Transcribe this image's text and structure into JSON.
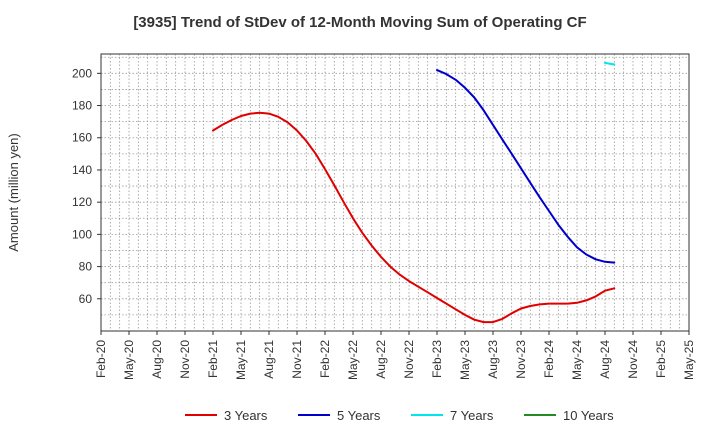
{
  "chart_data": {
    "type": "line",
    "title": "[3935]  Trend of StDev of 12-Month Moving Sum of Operating CF",
    "xlabel": "",
    "ylabel": "Amount (million yen)",
    "ylim": [
      40,
      212
    ],
    "yticks": [
      60,
      80,
      100,
      120,
      140,
      160,
      180,
      200
    ],
    "x_tick_labels": [
      "Feb-20",
      "May-20",
      "Aug-20",
      "Nov-20",
      "Feb-21",
      "May-21",
      "Aug-21",
      "Nov-21",
      "Feb-22",
      "May-22",
      "Aug-22",
      "Nov-22",
      "Feb-23",
      "May-23",
      "Aug-23",
      "Nov-23",
      "Feb-24",
      "May-24",
      "Aug-24",
      "Nov-24",
      "Feb-25",
      "May-25"
    ],
    "grid": true,
    "legend_position": "bottom",
    "series": [
      {
        "name": "3 Years",
        "color": "#e00000",
        "points": [
          [
            "Feb-21",
            164.5
          ],
          [
            "Mar-21",
            168
          ],
          [
            "Apr-21",
            171
          ],
          [
            "May-21",
            173.5
          ],
          [
            "Jun-21",
            175
          ],
          [
            "Jul-21",
            175.5
          ],
          [
            "Aug-21",
            175
          ],
          [
            "Sep-21",
            173
          ],
          [
            "Oct-21",
            169.5
          ],
          [
            "Nov-21",
            164.5
          ],
          [
            "Dec-21",
            158
          ],
          [
            "Jan-22",
            150
          ],
          [
            "Feb-22",
            140.5
          ],
          [
            "Mar-22",
            130.5
          ],
          [
            "Apr-22",
            120
          ],
          [
            "May-22",
            110
          ],
          [
            "Jun-22",
            101
          ],
          [
            "Jul-22",
            93
          ],
          [
            "Aug-22",
            86
          ],
          [
            "Sep-22",
            80
          ],
          [
            "Oct-22",
            75
          ],
          [
            "Nov-22",
            71
          ],
          [
            "Dec-22",
            67.5
          ],
          [
            "Jan-23",
            64
          ],
          [
            "Feb-23",
            60.5
          ],
          [
            "Mar-23",
            57
          ],
          [
            "Apr-23",
            53.5
          ],
          [
            "May-23",
            50
          ],
          [
            "Jun-23",
            47
          ],
          [
            "Jul-23",
            45.5
          ],
          [
            "Aug-23",
            45.5
          ],
          [
            "Sep-23",
            47.5
          ],
          [
            "Oct-23",
            51
          ],
          [
            "Nov-23",
            54
          ],
          [
            "Dec-23",
            55.5
          ],
          [
            "Jan-24",
            56.5
          ],
          [
            "Feb-24",
            57
          ],
          [
            "Mar-24",
            57
          ],
          [
            "Apr-24",
            57
          ],
          [
            "May-24",
            57.5
          ],
          [
            "Jun-24",
            59
          ],
          [
            "Jul-24",
            61.5
          ],
          [
            "Aug-24",
            65
          ],
          [
            "Sep-24",
            66.5
          ]
        ]
      },
      {
        "name": "5 Years",
        "color": "#0000cc",
        "points": [
          [
            "Feb-23",
            202
          ],
          [
            "Mar-23",
            199.5
          ],
          [
            "Apr-23",
            196
          ],
          [
            "May-23",
            191
          ],
          [
            "Jun-23",
            185
          ],
          [
            "Jul-23",
            177
          ],
          [
            "Aug-23",
            168
          ],
          [
            "Sep-23",
            159
          ],
          [
            "Oct-23",
            150
          ],
          [
            "Nov-23",
            141
          ],
          [
            "Dec-23",
            132
          ],
          [
            "Jan-24",
            123
          ],
          [
            "Feb-24",
            114.5
          ],
          [
            "Mar-24",
            106
          ],
          [
            "Apr-24",
            98.5
          ],
          [
            "May-24",
            92
          ],
          [
            "Jun-24",
            87.5
          ],
          [
            "Jul-24",
            84.5
          ],
          [
            "Aug-24",
            83
          ],
          [
            "Sep-24",
            82.5
          ]
        ]
      },
      {
        "name": "7 Years",
        "color": "#00e5ee",
        "points": [
          [
            "Aug-24",
            206.5
          ],
          [
            "Sep-24",
            205.5
          ]
        ]
      },
      {
        "name": "10 Years",
        "color": "#228b22",
        "points": []
      }
    ]
  }
}
